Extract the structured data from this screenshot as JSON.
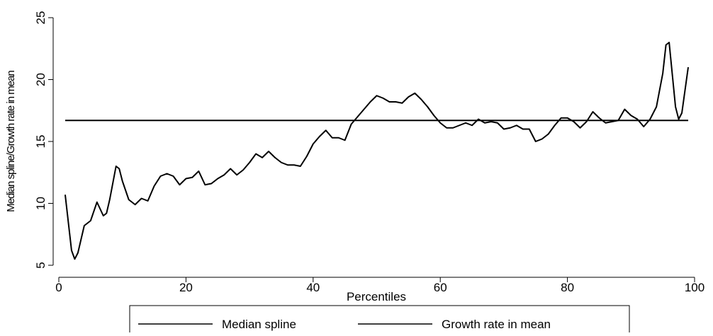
{
  "chart_data": {
    "type": "line",
    "xlabel": "Percentiles",
    "ylabel": "Median spline/Growth rate in mean",
    "xlim": [
      0,
      100
    ],
    "ylim": [
      5,
      25
    ],
    "xticks": [
      0,
      20,
      40,
      60,
      80,
      100
    ],
    "yticks": [
      5,
      10,
      15,
      20,
      25
    ],
    "legend": "bottom",
    "series": [
      {
        "name": "Median spline",
        "color": "#000000",
        "x": [
          1,
          2,
          2.5,
          3,
          4,
          5,
          6,
          7,
          7.5,
          8,
          9,
          9.5,
          10,
          11,
          12,
          13,
          14,
          15,
          16,
          17,
          18,
          19,
          20,
          21,
          22,
          23,
          24,
          25,
          26,
          27,
          28,
          29,
          30,
          31,
          32,
          33,
          34,
          35,
          36,
          37,
          38,
          39,
          40,
          41,
          42,
          43,
          44,
          45,
          46,
          47,
          48,
          49,
          50,
          51,
          52,
          53,
          54,
          55,
          56,
          57,
          58,
          59,
          60,
          61,
          62,
          63,
          64,
          65,
          66,
          67,
          68,
          69,
          70,
          71,
          72,
          73,
          74,
          75,
          76,
          77,
          78,
          79,
          80,
          81,
          82,
          83,
          84,
          85,
          86,
          87,
          88,
          89,
          90,
          91,
          92,
          93,
          94,
          95,
          95.5,
          96,
          97,
          97.5,
          98,
          99
        ],
        "values": [
          10.7,
          6.2,
          5.5,
          6.0,
          8.2,
          8.6,
          10.1,
          9.0,
          9.2,
          10.3,
          13.0,
          12.8,
          11.8,
          10.3,
          9.9,
          10.4,
          10.2,
          11.4,
          12.2,
          12.4,
          12.2,
          11.5,
          12.0,
          12.1,
          12.6,
          11.5,
          11.6,
          12.0,
          12.3,
          12.8,
          12.3,
          12.7,
          13.3,
          14.0,
          13.7,
          14.2,
          13.7,
          13.3,
          13.1,
          13.1,
          13.0,
          13.8,
          14.8,
          15.4,
          15.9,
          15.3,
          15.3,
          15.1,
          16.4,
          17.0,
          17.6,
          18.2,
          18.7,
          18.5,
          18.2,
          18.2,
          18.1,
          18.6,
          18.9,
          18.4,
          17.8,
          17.1,
          16.5,
          16.1,
          16.1,
          16.3,
          16.5,
          16.3,
          16.8,
          16.5,
          16.6,
          16.5,
          16.0,
          16.1,
          16.3,
          16.0,
          16.0,
          15.0,
          15.2,
          15.6,
          16.3,
          16.9,
          16.9,
          16.6,
          16.1,
          16.6,
          17.4,
          16.9,
          16.5,
          16.6,
          16.7,
          17.6,
          17.1,
          16.8,
          16.2,
          16.8,
          17.8,
          20.5,
          22.8,
          23.0,
          17.8,
          16.8,
          17.3,
          21.0
        ]
      },
      {
        "name": "Growth rate in mean",
        "color": "#000000",
        "x": [
          1,
          99
        ],
        "values": [
          16.7,
          16.7
        ]
      }
    ]
  }
}
